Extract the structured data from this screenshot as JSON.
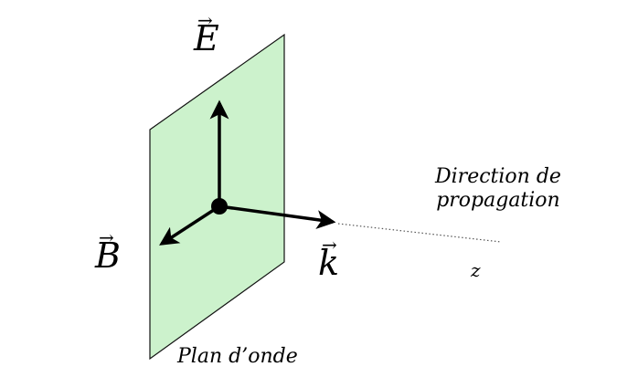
{
  "labels": {
    "E": "E",
    "B": "B",
    "k": "k",
    "vector_arrow": "→",
    "direction_line1": "Direction de",
    "direction_line2": "propagation",
    "axis_z": "z",
    "plane": "Plan d’onde"
  },
  "colors": {
    "plane_fill": "#ccf2cc",
    "plane_stroke": "#111111",
    "vector": "#000000",
    "dotted_line": "#555555"
  }
}
